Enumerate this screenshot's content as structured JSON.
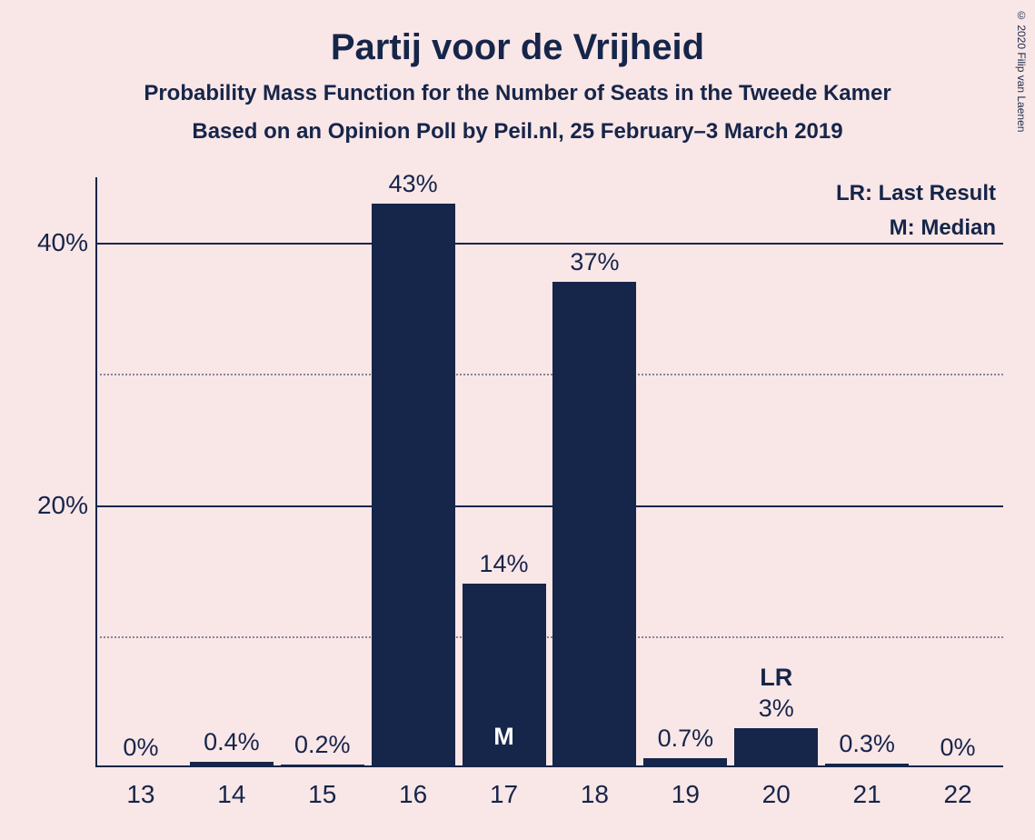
{
  "copyright": "© 2020 Filip van Laenen",
  "title": "Partij voor de Vrijheid",
  "subtitle1": "Probability Mass Function for the Number of Seats in the Tweede Kamer",
  "subtitle2": "Based on an Opinion Poll by Peil.nl, 25 February–3 March 2019",
  "legend": {
    "lr": "LR: Last Result",
    "m": "M: Median"
  },
  "chart": {
    "type": "bar",
    "bar_color": "#16254a",
    "background_color": "#f9e6e6",
    "text_color": "#16254a",
    "y_axis": {
      "min": 0,
      "max": 45,
      "major_ticks": [
        {
          "value": 20,
          "label": "20%"
        },
        {
          "value": 40,
          "label": "40%"
        }
      ],
      "minor_ticks": [
        10,
        30
      ]
    },
    "bars": [
      {
        "x": "13",
        "value": 0,
        "label": "0%"
      },
      {
        "x": "14",
        "value": 0.4,
        "label": "0.4%"
      },
      {
        "x": "15",
        "value": 0.2,
        "label": "0.2%"
      },
      {
        "x": "16",
        "value": 43,
        "label": "43%"
      },
      {
        "x": "17",
        "value": 14,
        "label": "14%",
        "inside_label": "M"
      },
      {
        "x": "18",
        "value": 37,
        "label": "37%"
      },
      {
        "x": "19",
        "value": 0.7,
        "label": "0.7%"
      },
      {
        "x": "20",
        "value": 3,
        "label": "3%",
        "extra_above": "LR"
      },
      {
        "x": "21",
        "value": 0.3,
        "label": "0.3%"
      },
      {
        "x": "22",
        "value": 0,
        "label": "0%"
      }
    ]
  }
}
